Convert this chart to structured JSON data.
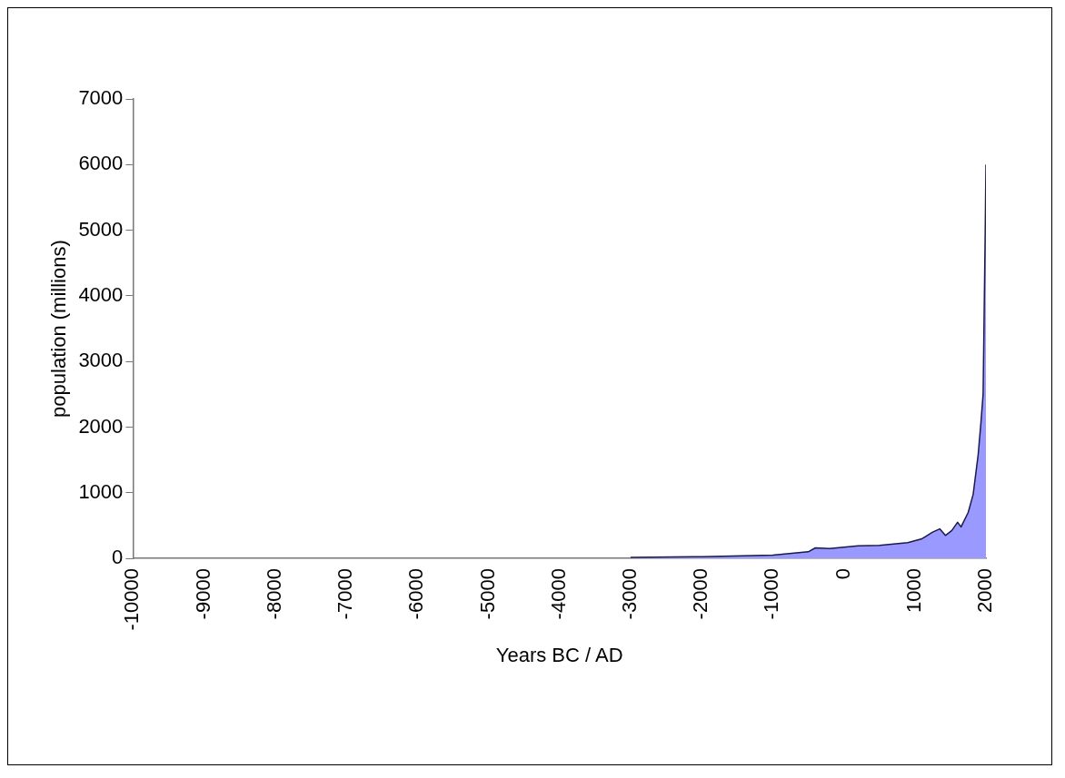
{
  "chart_data": {
    "type": "area",
    "xlabel": "Years BC / AD",
    "ylabel": "population (millions)",
    "x": [
      -3000,
      -2000,
      -1000,
      -500,
      -400,
      -200,
      0,
      200,
      500,
      900,
      1100,
      1250,
      1350,
      1430,
      1520,
      1600,
      1650,
      1750,
      1820,
      1890,
      1930,
      1960,
      1975,
      1990,
      2000
    ],
    "series": [
      {
        "color": "#9999ff",
        "values": [
          14,
          27,
          50,
          100,
          160,
          150,
          170,
          190,
          200,
          240,
          300,
          400,
          450,
          350,
          425,
          550,
          480,
          700,
          975,
          1575,
          2075,
          2500,
          3750,
          5000,
          6000
        ]
      }
    ],
    "xlim": [
      -10000,
      2000
    ],
    "xticks": [
      -10000,
      -9000,
      -8000,
      -7000,
      -6000,
      -5000,
      -4000,
      -3000,
      -2000,
      -1000,
      0,
      1000,
      2000
    ],
    "ylim": [
      0,
      7000
    ],
    "yticks": [
      0,
      1000,
      2000,
      3000,
      4000,
      5000,
      6000,
      7000
    ],
    "grid": false,
    "legend": false
  }
}
